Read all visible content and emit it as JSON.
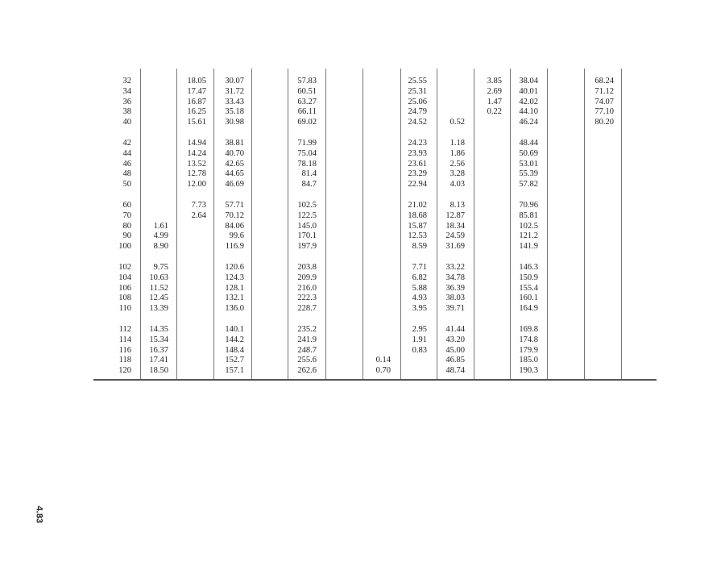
{
  "page_number": "4.83",
  "table": {
    "groups": [
      [
        [
          "32",
          "",
          "18.05",
          "30.07",
          "",
          "57.83",
          "",
          "",
          "25.55",
          "",
          "3.85",
          "38.04",
          "",
          "68.24",
          ""
        ],
        [
          "34",
          "",
          "17.47",
          "31.72",
          "",
          "60.51",
          "",
          "",
          "25.31",
          "",
          "2.69",
          "40.01",
          "",
          "71.12",
          ""
        ],
        [
          "36",
          "",
          "16.87",
          "33.43",
          "",
          "63.27",
          "",
          "",
          "25.06",
          "",
          "1.47",
          "42.02",
          "",
          "74.07",
          ""
        ],
        [
          "38",
          "",
          "16.25",
          "35.18",
          "",
          "66.11",
          "",
          "",
          "24.79",
          "",
          "0.22",
          "44.10",
          "",
          "77.10",
          ""
        ],
        [
          "40",
          "",
          "15.61",
          "30.98",
          "",
          "69.02",
          "",
          "",
          "24.52",
          "0.52",
          "",
          "46.24",
          "",
          "80.20",
          ""
        ]
      ],
      [
        [
          "42",
          "",
          "14.94",
          "38.81",
          "",
          "71.99",
          "",
          "",
          "24.23",
          "1.18",
          "",
          "48.44",
          "",
          "",
          ""
        ],
        [
          "44",
          "",
          "14.24",
          "40.70",
          "",
          "75.04",
          "",
          "",
          "23.93",
          "1.86",
          "",
          "50.69",
          "",
          "",
          ""
        ],
        [
          "46",
          "",
          "13.52",
          "42.65",
          "",
          "78.18",
          "",
          "",
          "23.61",
          "2.56",
          "",
          "53.01",
          "",
          "",
          ""
        ],
        [
          "48",
          "",
          "12.78",
          "44.65",
          "",
          "81.4",
          "",
          "",
          "23.29",
          "3.28",
          "",
          "55.39",
          "",
          "",
          ""
        ],
        [
          "50",
          "",
          "12.00",
          "46.69",
          "",
          "84.7",
          "",
          "",
          "22.94",
          "4.03",
          "",
          "57.82",
          "",
          "",
          ""
        ]
      ],
      [
        [
          "60",
          "",
          "7.73",
          "57.71",
          "",
          "102.5",
          "",
          "",
          "21.02",
          "8.13",
          "",
          "70.96",
          "",
          "",
          ""
        ],
        [
          "70",
          "",
          "2.64",
          "70.12",
          "",
          "122.5",
          "",
          "",
          "18.68",
          "12.87",
          "",
          "85.81",
          "",
          "",
          ""
        ],
        [
          "80",
          "1.61",
          "",
          "84.06",
          "",
          "145.0",
          "",
          "",
          "15.87",
          "18.34",
          "",
          "102.5",
          "",
          "",
          ""
        ],
        [
          "90",
          "4.99",
          "",
          "99.6",
          "",
          "170.1",
          "",
          "",
          "12.53",
          "24.59",
          "",
          "121.2",
          "",
          "",
          ""
        ],
        [
          "100",
          "8.90",
          "",
          "116.9",
          "",
          "197.9",
          "",
          "",
          "8.59",
          "31.69",
          "",
          "141.9",
          "",
          "",
          ""
        ]
      ],
      [
        [
          "102",
          "9.75",
          "",
          "120.6",
          "",
          "203.8",
          "",
          "",
          "7.71",
          "33.22",
          "",
          "146.3",
          "",
          "",
          ""
        ],
        [
          "104",
          "10.63",
          "",
          "124.3",
          "",
          "209.9",
          "",
          "",
          "6.82",
          "34.78",
          "",
          "150.9",
          "",
          "",
          ""
        ],
        [
          "106",
          "11.52",
          "",
          "128.1",
          "",
          "216.0",
          "",
          "",
          "5.88",
          "36.39",
          "",
          "155.4",
          "",
          "",
          ""
        ],
        [
          "108",
          "12.45",
          "",
          "132.1",
          "",
          "222.3",
          "",
          "",
          "4.93",
          "38.03",
          "",
          "160.1",
          "",
          "",
          ""
        ],
        [
          "110",
          "13.39",
          "",
          "136.0",
          "",
          "228.7",
          "",
          "",
          "3.95",
          "39.71",
          "",
          "164.9",
          "",
          "",
          ""
        ]
      ],
      [
        [
          "112",
          "14.35",
          "",
          "140.1",
          "",
          "235.2",
          "",
          "",
          "2.95",
          "41.44",
          "",
          "169.8",
          "",
          "",
          ""
        ],
        [
          "114",
          "15.34",
          "",
          "144.2",
          "",
          "241.9",
          "",
          "",
          "1.91",
          "43.20",
          "",
          "174.8",
          "",
          "",
          ""
        ],
        [
          "116",
          "16.37",
          "",
          "148.4",
          "",
          "248.7",
          "",
          "",
          "0.83",
          "45.00",
          "",
          "179.9",
          "",
          "",
          ""
        ],
        [
          "118",
          "17.41",
          "",
          "152.7",
          "",
          "255.6",
          "",
          "0.14",
          "",
          "46.85",
          "",
          "185.0",
          "",
          "",
          ""
        ],
        [
          "120",
          "18.50",
          "",
          "157.1",
          "",
          "262.6",
          "",
          "0.70",
          "",
          "48.74",
          "",
          "190.3",
          "",
          "",
          ""
        ]
      ]
    ]
  }
}
